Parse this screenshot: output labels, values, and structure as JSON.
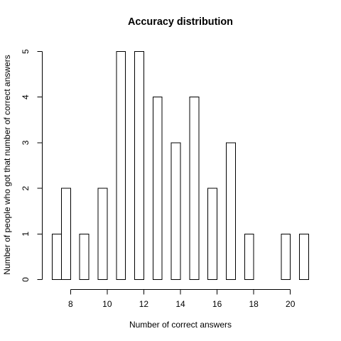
{
  "chart_data": {
    "type": "bar",
    "title": "Accuracy distribution",
    "xlabel": "Number of correct answers",
    "ylabel": "Number of people who got that number of correct answers",
    "x": [
      7.5,
      8,
      9,
      10,
      11,
      12,
      13,
      14,
      15,
      16,
      17,
      18,
      20,
      21
    ],
    "values": [
      1,
      2,
      1,
      2,
      5,
      5,
      4,
      3,
      4,
      2,
      3,
      1,
      1,
      1
    ],
    "bar_width": 0.5,
    "xlim": [
      7,
      21
    ],
    "ylim": [
      0,
      5
    ],
    "x_ticks": [
      "8",
      "10",
      "12",
      "14",
      "16",
      "18",
      "20"
    ],
    "y_ticks": [
      "0",
      "1",
      "2",
      "3",
      "4",
      "5"
    ],
    "grid": false,
    "legend": "none",
    "colors": {
      "bar_fill": "#ffffff",
      "bar_stroke": "#000000"
    }
  }
}
